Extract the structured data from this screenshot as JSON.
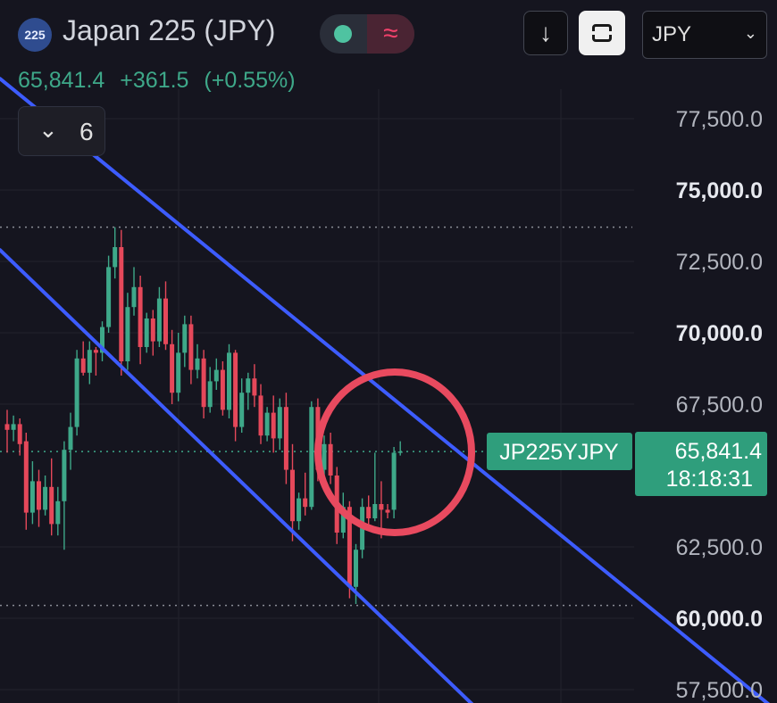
{
  "header": {
    "symbol_badge": "225",
    "title": "Japan 225 (JPY)",
    "wave_icon": "≈",
    "price": "65,841.4",
    "change": "+361.5",
    "change_pct": "(+0.55%)",
    "currency": "JPY",
    "indicator_count": "6"
  },
  "icons": {
    "download": "↓",
    "chevron_down": "⌄",
    "collapse_chevron": "⌄"
  },
  "colors": {
    "background": "#15151f",
    "up": "#3ea889",
    "down": "#e5485a",
    "channel": "#3d5cff",
    "circle": "#e84a5f",
    "text": "#d1d4dc"
  },
  "chart_data": {
    "type": "candlestick",
    "symbol_label": "JP225YJPY",
    "last_price": "65,841.4",
    "countdown": "18:18:31",
    "y_ticks": [
      {
        "label": "77,500.0",
        "value": 77500,
        "bold": false
      },
      {
        "label": "75,000.0",
        "value": 75000,
        "bold": true
      },
      {
        "label": "72,500.0",
        "value": 72500,
        "bold": false
      },
      {
        "label": "70,000.0",
        "value": 70000,
        "bold": true
      },
      {
        "label": "67,500.0",
        "value": 67500,
        "bold": false
      },
      {
        "label": "62,500.0",
        "value": 62500,
        "bold": false
      },
      {
        "label": "60,000.0",
        "value": 60000,
        "bold": true
      },
      {
        "label": "57,500.0",
        "value": 57500,
        "bold": false
      }
    ],
    "ylim": [
      56800,
      80000
    ],
    "reference_lines": [
      73700,
      65841.4,
      60450
    ],
    "candles": [
      [
        66800,
        67300,
        65800,
        66600
      ],
      [
        66600,
        67100,
        66200,
        66800
      ],
      [
        66800,
        67000,
        65700,
        66100
      ],
      [
        66200,
        66500,
        63100,
        63700
      ],
      [
        63700,
        65500,
        63300,
        64800
      ],
      [
        64800,
        65200,
        63200,
        63800
      ],
      [
        63800,
        65000,
        63600,
        64600
      ],
      [
        64600,
        65600,
        62900,
        63300
      ],
      [
        63300,
        64600,
        62900,
        64100
      ],
      [
        64100,
        66200,
        62400,
        65900
      ],
      [
        65900,
        67200,
        65200,
        66700
      ],
      [
        66700,
        69400,
        66400,
        69100
      ],
      [
        69100,
        69700,
        68500,
        68600
      ],
      [
        68600,
        69700,
        68200,
        69400
      ],
      [
        69400,
        69500,
        68500,
        69300
      ],
      [
        69300,
        70400,
        69000,
        70200
      ],
      [
        70200,
        72700,
        70000,
        72300
      ],
      [
        72300,
        73700,
        71900,
        73000
      ],
      [
        73000,
        73600,
        68500,
        69000
      ],
      [
        69000,
        71400,
        68700,
        70900
      ],
      [
        70900,
        72300,
        70600,
        71600
      ],
      [
        71600,
        72000,
        68900,
        69500
      ],
      [
        69500,
        70700,
        69300,
        70500
      ],
      [
        70500,
        70800,
        69200,
        69700
      ],
      [
        69700,
        71600,
        69500,
        71200
      ],
      [
        71200,
        71800,
        69400,
        69600
      ],
      [
        69600,
        70100,
        67500,
        67900
      ],
      [
        67900,
        70000,
        67600,
        69300
      ],
      [
        69300,
        70600,
        68800,
        70300
      ],
      [
        70300,
        70600,
        68200,
        68700
      ],
      [
        68700,
        69600,
        68400,
        69100
      ],
      [
        69100,
        69400,
        67000,
        67400
      ],
      [
        67400,
        68800,
        67200,
        68300
      ],
      [
        68300,
        69100,
        68000,
        68700
      ],
      [
        68700,
        69000,
        67100,
        67300
      ],
      [
        67300,
        69600,
        67000,
        69300
      ],
      [
        69300,
        69400,
        66200,
        66700
      ],
      [
        66700,
        68400,
        66500,
        67900
      ],
      [
        67900,
        68600,
        67300,
        68400
      ],
      [
        68400,
        68900,
        67400,
        67800
      ],
      [
        67800,
        68200,
        66100,
        66400
      ],
      [
        66400,
        67400,
        66200,
        67200
      ],
      [
        67200,
        67800,
        65800,
        66300
      ],
      [
        66300,
        67700,
        65900,
        67400
      ],
      [
        67400,
        67900,
        64700,
        65200
      ],
      [
        65200,
        66100,
        62700,
        63400
      ],
      [
        63400,
        64400,
        63100,
        64200
      ],
      [
        64200,
        65100,
        63600,
        63900
      ],
      [
        63900,
        67600,
        63800,
        67400
      ],
      [
        67400,
        67700,
        64800,
        65200
      ],
      [
        65200,
        66400,
        64900,
        66100
      ],
      [
        66100,
        66500,
        64700,
        65000
      ],
      [
        65000,
        65300,
        62600,
        63000
      ],
      [
        63000,
        64400,
        62800,
        63900
      ],
      [
        63900,
        64100,
        60700,
        61100
      ],
      [
        61100,
        62600,
        60500,
        62400
      ],
      [
        62400,
        64200,
        62100,
        63900
      ],
      [
        63900,
        64300,
        63200,
        63500
      ],
      [
        63500,
        65800,
        63400,
        64000
      ],
      [
        64000,
        64800,
        62800,
        63800
      ],
      [
        63800,
        64000,
        63500,
        63700
      ],
      [
        63800,
        66000,
        63500,
        65800
      ],
      [
        65800,
        66200,
        65700,
        65841
      ]
    ],
    "channel_lines": [
      {
        "name": "",
        "x1": 0,
        "y1": 78900,
        "x2": 868,
        "y2": 56800
      },
      {
        "name": "",
        "x1": 0,
        "y1": 72900,
        "x2": 535,
        "y2": 56800
      }
    ],
    "annotation": {
      "type": "circle",
      "color": "#e84a5f"
    }
  }
}
